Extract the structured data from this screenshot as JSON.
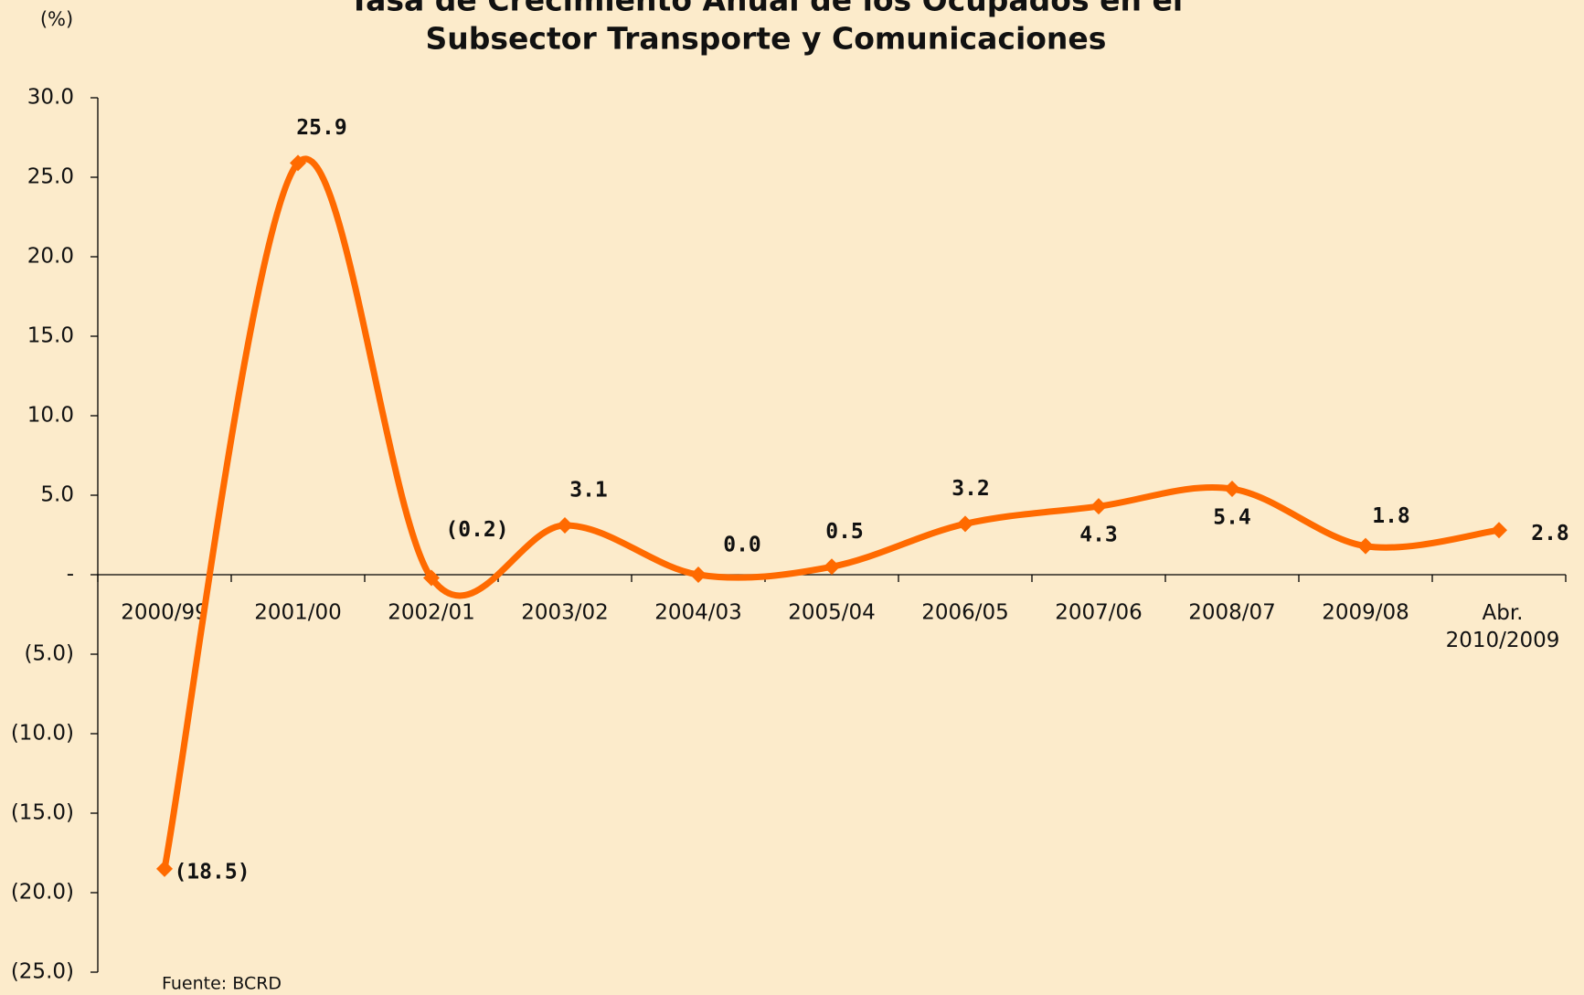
{
  "chart_data": {
    "type": "line",
    "title": [
      "Tasa de Crecimiento Anual de los Ocupados en el",
      "Subsector Transporte y Comunicaciones"
    ],
    "y_label": "(%)",
    "source": "Fuente: BCRD",
    "categories": [
      "2000/99",
      "2001/00",
      "2002/01",
      "2003/02",
      "2004/03",
      "2005/04",
      "2006/05",
      "2007/06",
      "2008/07",
      "2009/08",
      "Abr. 2010/2009"
    ],
    "values": [
      -18.5,
      25.9,
      -0.2,
      3.1,
      0.0,
      0.5,
      3.2,
      4.3,
      5.4,
      1.8,
      2.8
    ],
    "value_labels": [
      "(18.5)",
      "25.9",
      "(0.2)",
      "3.1",
      "0.0",
      "0.5",
      "3.2",
      "4.3",
      "5.4",
      "1.8",
      "2.8"
    ],
    "color": "#ff6a00",
    "ylim": [
      -25,
      30
    ],
    "yticks": [
      {
        "value": -25,
        "label": "(25.0)"
      },
      {
        "value": -20,
        "label": "(20.0)"
      },
      {
        "value": -15,
        "label": "(15.0)"
      },
      {
        "value": -10,
        "label": "(10.0)"
      },
      {
        "value": -5,
        "label": "(5.0)"
      },
      {
        "value": 0,
        "label": "-"
      },
      {
        "value": 5,
        "label": "5.0"
      },
      {
        "value": 10,
        "label": "10.0"
      },
      {
        "value": 15,
        "label": "15.0"
      },
      {
        "value": 20,
        "label": "20.0"
      },
      {
        "value": 25,
        "label": "25.0"
      },
      {
        "value": 30,
        "label": "30.0"
      }
    ],
    "smooth": true
  }
}
